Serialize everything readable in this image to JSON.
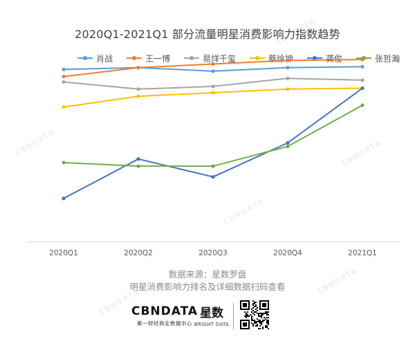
{
  "watermark": "CBNDATA",
  "footer": {
    "source_line": "数据来源：星数罗盘",
    "cta_line": "明星消费影响力排名及详细数据扫码查看",
    "brand_cbndata": "CBNDATA",
    "brand_cbndata_sub": "第一财经商业数据中心",
    "brand_xingshu": "星数",
    "brand_xingshu_sub": "BRIGHT DATA"
  },
  "chart_data": {
    "type": "line",
    "title": "2020Q1-2021Q1 部分流量明星消费影响力指数趋势",
    "xlabel": "",
    "ylabel": "",
    "categories": [
      "2020Q1",
      "2020Q2",
      "2020Q3",
      "2020Q4",
      "2021Q1"
    ],
    "ylim": [
      0,
      100
    ],
    "y_axis_visible": false,
    "grid": false,
    "legend_position": "top",
    "series": [
      {
        "name": "肖战",
        "color": "#5B9BD5",
        "values": [
          91,
          92,
          90,
          92,
          92.5
        ]
      },
      {
        "name": "王一博",
        "color": "#ED7D31",
        "values": [
          87,
          92,
          94,
          96,
          96.5
        ]
      },
      {
        "name": "易烊千玺",
        "color": "#A5A5A5",
        "values": [
          84,
          80,
          81.5,
          86,
          85
        ]
      },
      {
        "name": "蔡徐坤",
        "color": "#FFC000",
        "values": [
          70,
          76,
          78,
          80,
          80.5
        ]
      },
      {
        "name": "龚俊",
        "color": "#4472C4",
        "values": [
          19,
          41,
          31,
          50,
          80.5
        ]
      },
      {
        "name": "张哲瀚",
        "color": "#70AD47",
        "values": [
          39,
          37,
          37,
          48,
          71
        ]
      }
    ]
  }
}
